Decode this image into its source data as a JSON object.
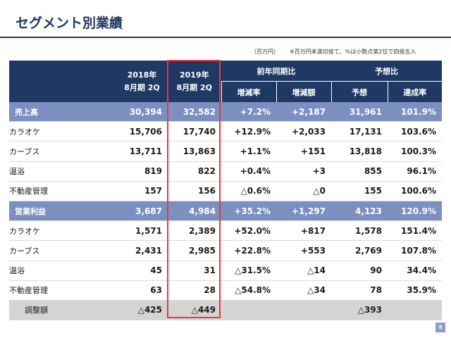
{
  "title": "セグメント別業績",
  "unit_note": "（百万円）",
  "rounding_note": "※百万円未満切捨て、％は小数点第2位で四捨五入",
  "header": {
    "y2018": [
      "2018年",
      "8月期 2Q"
    ],
    "y2019": [
      "2019年",
      "8月期 2Q"
    ],
    "yoy": "前年同期比",
    "yoy_rate": "増減率",
    "yoy_amount": "増減額",
    "forecast": "予想比",
    "forecast_value": "予想",
    "achievement": "達成率"
  },
  "rows": [
    {
      "label": "売上高",
      "type": "total",
      "y2018": "30,394",
      "y2019": "32,582",
      "rate": "+7.2%",
      "amount": "+2,187",
      "forecast": "31,961",
      "achieve": "101.9%"
    },
    {
      "label": "カラオケ",
      "type": "sub",
      "y2018": "15,706",
      "y2019": "17,740",
      "rate": "+12.9%",
      "amount": "+2,033",
      "forecast": "17,131",
      "achieve": "103.6%"
    },
    {
      "label": "カーブス",
      "type": "sub",
      "y2018": "13,711",
      "y2019": "13,863",
      "rate": "+1.1%",
      "amount": "+151",
      "forecast": "13,818",
      "achieve": "100.3%"
    },
    {
      "label": "温浴",
      "type": "sub",
      "y2018": "819",
      "y2019": "822",
      "rate": "+0.4%",
      "amount": "+3",
      "forecast": "855",
      "achieve": "96.1%"
    },
    {
      "label": "不動産管理",
      "type": "sub",
      "y2018": "157",
      "y2019": "156",
      "rate": "△0.6%",
      "amount": "△0",
      "forecast": "155",
      "achieve": "100.6%"
    },
    {
      "label": "営業利益",
      "type": "total",
      "y2018": "3,687",
      "y2019": "4,984",
      "rate": "+35.2%",
      "amount": "+1,297",
      "forecast": "4,123",
      "achieve": "120.9%"
    },
    {
      "label": "カラオケ",
      "type": "sub",
      "y2018": "1,571",
      "y2019": "2,389",
      "rate": "+52.0%",
      "amount": "+817",
      "forecast": "1,578",
      "achieve": "151.4%"
    },
    {
      "label": "カーブス",
      "type": "sub",
      "y2018": "2,431",
      "y2019": "2,985",
      "rate": "+22.8%",
      "amount": "+553",
      "forecast": "2,769",
      "achieve": "107.8%"
    },
    {
      "label": "温浴",
      "type": "sub",
      "y2018": "45",
      "y2019": "31",
      "rate": "△31.5%",
      "amount": "△14",
      "forecast": "90",
      "achieve": "34.4%"
    },
    {
      "label": "不動産管理",
      "type": "sub",
      "y2018": "63",
      "y2019": "28",
      "rate": "△54.8%",
      "amount": "△34",
      "forecast": "78",
      "achieve": "35.9%"
    },
    {
      "label": "調整額",
      "type": "adj",
      "y2018": "△425",
      "y2019": "△449",
      "rate": "",
      "amount": "",
      "forecast": "△393",
      "achieve": ""
    }
  ],
  "page_number": "8",
  "colors": {
    "navy": "#1f3864",
    "highlight": "#e9383f",
    "total_row": "#7b8fc0",
    "adjust_row": "#d4d4d4"
  }
}
